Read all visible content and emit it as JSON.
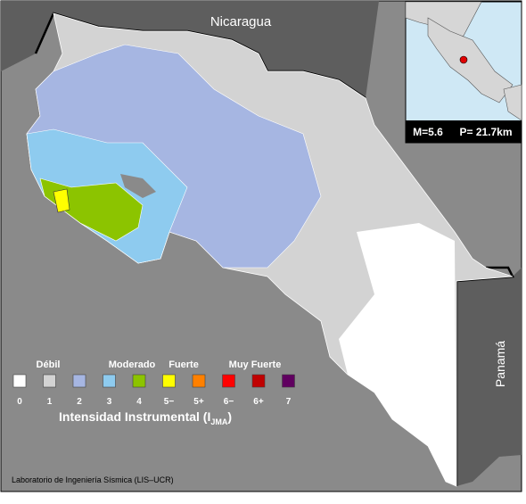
{
  "map": {
    "labels": {
      "north": "Nicaragua",
      "east": "Panamá"
    },
    "inset": {
      "magnitude": "M=5.6",
      "depth": "P= 21.7km"
    },
    "legend": {
      "groups": [
        "Débil",
        "Moderado",
        "Fuerte",
        "Muy Fuerte"
      ],
      "classes": [
        {
          "label": "0",
          "color": "#ffffff"
        },
        {
          "label": "1",
          "color": "#d3d3d3"
        },
        {
          "label": "2",
          "color": "#a6b6e2"
        },
        {
          "label": "3",
          "color": "#8ecbef"
        },
        {
          "label": "4",
          "color": "#8cc400"
        },
        {
          "label": "5−",
          "color": "#ffff00"
        },
        {
          "label": "5+",
          "color": "#ff8000"
        },
        {
          "label": "6−",
          "color": "#ff0000"
        },
        {
          "label": "6+",
          "color": "#c00000"
        },
        {
          "label": "7",
          "color": "#600060"
        }
      ],
      "title": "Intensidad Instrumental (I",
      "title_sub": "JMA",
      "title_end": ")"
    },
    "footer": "Laboratorio de Ingeniería Sísmica (LIS–UCR)"
  }
}
